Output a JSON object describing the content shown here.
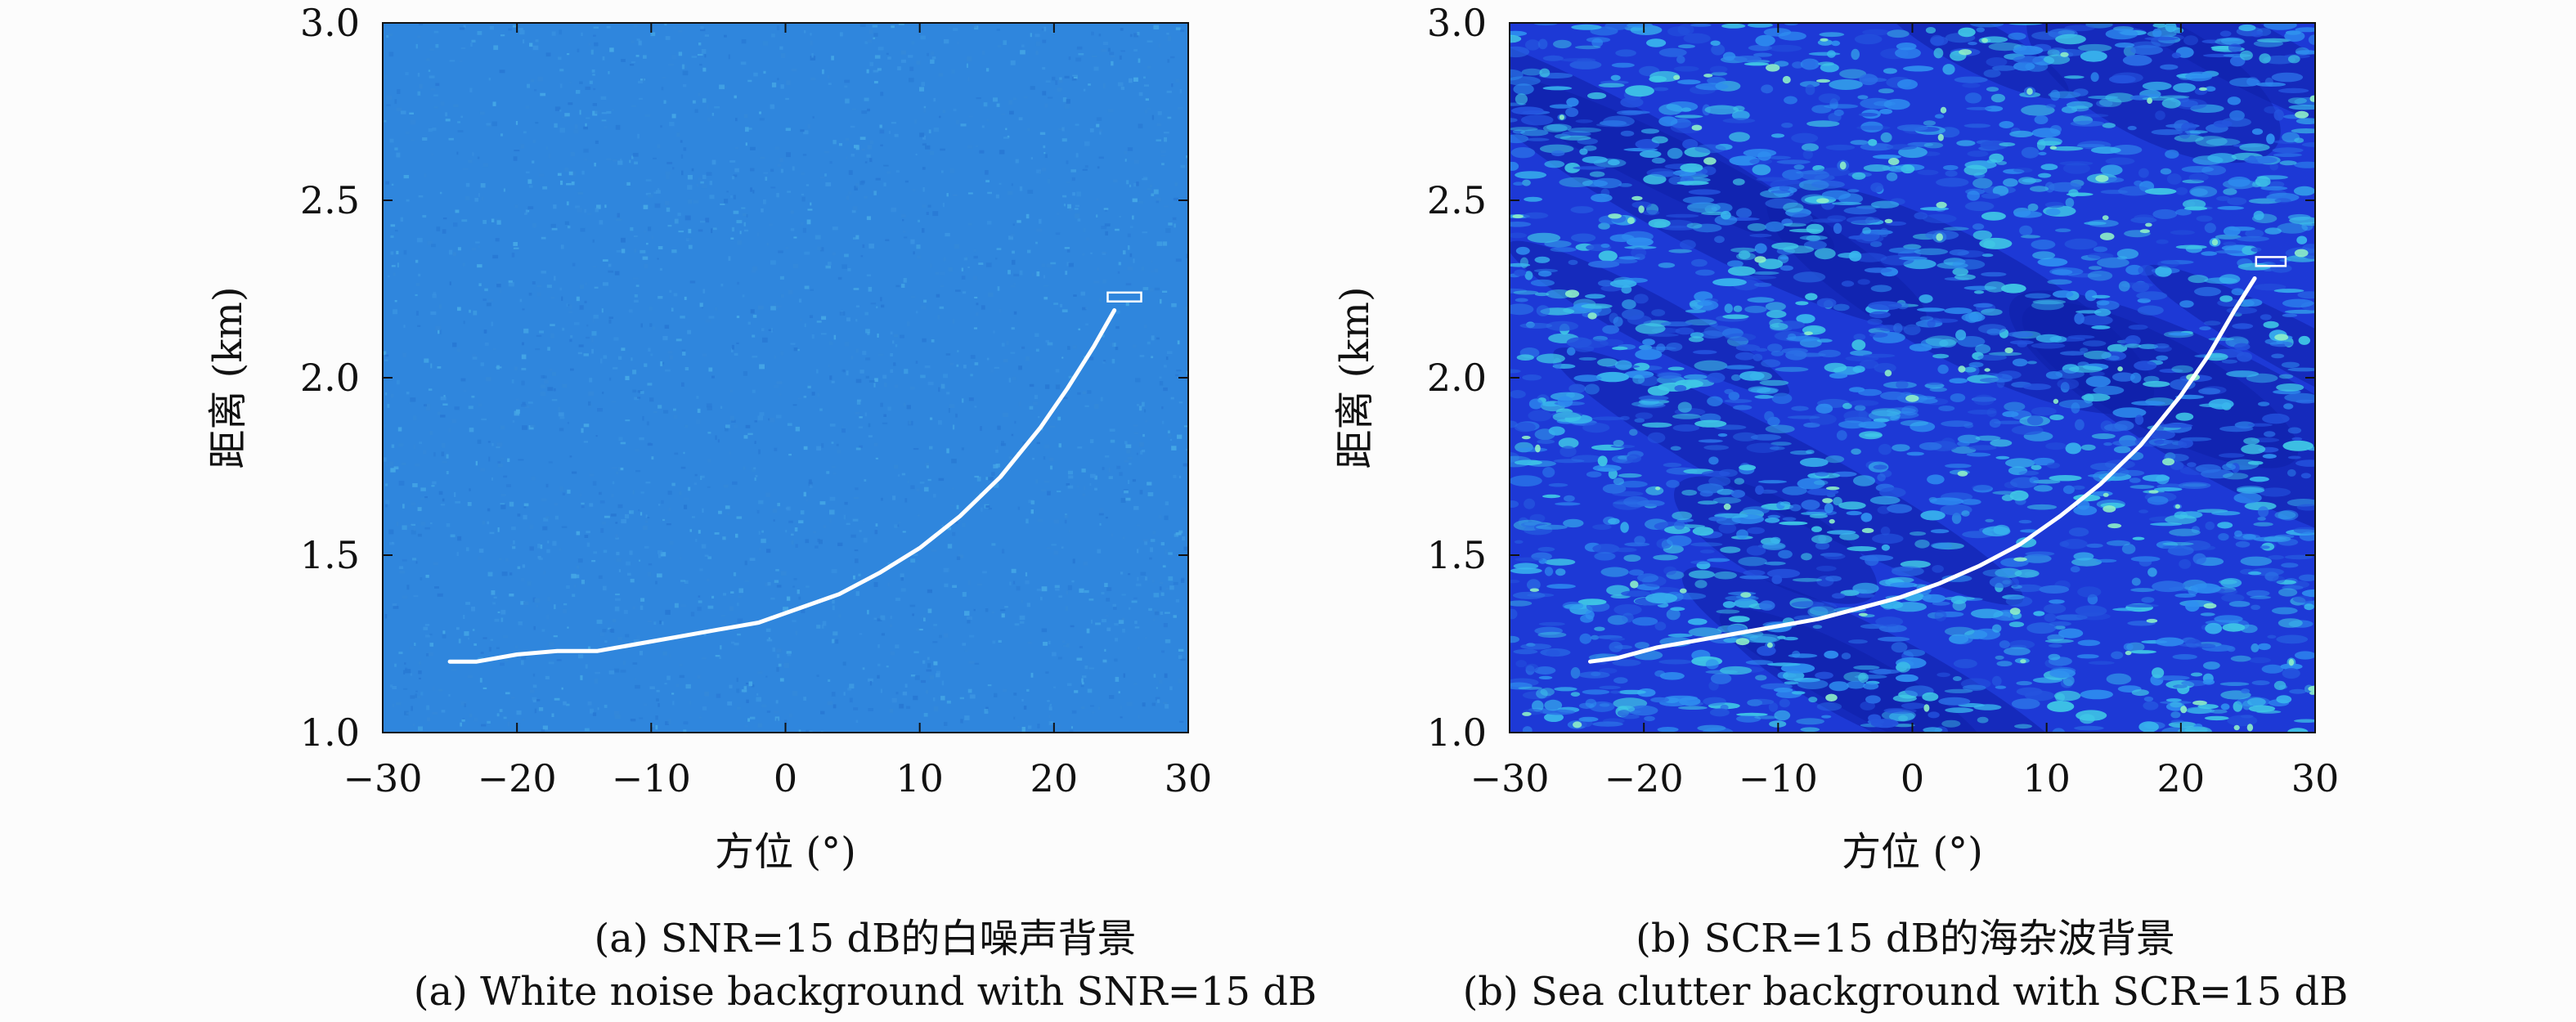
{
  "chart_data": [
    {
      "type": "heatmap",
      "panel": "a",
      "background": "white-noise",
      "xlabel": "方位 (°)",
      "ylabel": "距离 (km)",
      "xlim": [
        -30,
        30
      ],
      "ylim": [
        1.0,
        3.0
      ],
      "xticks": [
        -30,
        -20,
        -10,
        0,
        10,
        20,
        30
      ],
      "yticks": [
        1.0,
        1.5,
        2.0,
        2.5,
        3.0
      ],
      "xtick_labels": [
        "−30",
        "−20",
        "−10",
        "0",
        "10",
        "20",
        "30"
      ],
      "ytick_labels": [
        "1.0",
        "1.5",
        "2.0",
        "2.5",
        "3.0"
      ],
      "track": {
        "color": "#ffffff",
        "x": [
          -25,
          -23,
          -20,
          -17,
          -14,
          -11,
          -8,
          -5,
          -2,
          1,
          4,
          7,
          10,
          13,
          16,
          19,
          21,
          23,
          24.5
        ],
        "y": [
          1.2,
          1.2,
          1.22,
          1.23,
          1.23,
          1.25,
          1.27,
          1.29,
          1.31,
          1.35,
          1.39,
          1.45,
          1.52,
          1.61,
          1.72,
          1.86,
          1.97,
          2.09,
          2.19
        ]
      },
      "marker_box": {
        "x": [
          24,
          26.5
        ],
        "y": [
          2.215,
          2.24
        ]
      },
      "colors": {
        "base": "#2f86dd",
        "speckle": "#46b0e8"
      },
      "caption_cn": "(a) SNR=15 dB的白噪声背景",
      "caption_en": "(a) White noise background with SNR=15 dB"
    },
    {
      "type": "heatmap",
      "panel": "b",
      "background": "sea-clutter",
      "xlabel": "方位 (°)",
      "ylabel": "距离 (km)",
      "xlim": [
        -30,
        30
      ],
      "ylim": [
        1.0,
        3.0
      ],
      "xticks": [
        -30,
        -20,
        -10,
        0,
        10,
        20,
        30
      ],
      "yticks": [
        1.0,
        1.5,
        2.0,
        2.5,
        3.0
      ],
      "xtick_labels": [
        "−30",
        "−20",
        "−10",
        "0",
        "10",
        "20",
        "30"
      ],
      "ytick_labels": [
        "1.0",
        "1.5",
        "2.0",
        "2.5",
        "3.0"
      ],
      "track": {
        "color": "#ffffff",
        "x": [
          -24,
          -22,
          -19,
          -16,
          -13,
          -10,
          -7,
          -4,
          -1,
          2,
          5,
          8,
          11,
          14,
          17,
          20,
          22,
          24,
          25.5
        ],
        "y": [
          1.2,
          1.21,
          1.24,
          1.26,
          1.28,
          1.3,
          1.32,
          1.35,
          1.38,
          1.42,
          1.47,
          1.53,
          1.61,
          1.7,
          1.81,
          1.95,
          2.06,
          2.19,
          2.28
        ]
      },
      "marker_box": {
        "x": [
          25.6,
          27.8
        ],
        "y": [
          2.315,
          2.34
        ]
      },
      "colors": {
        "base": "#1d39d6",
        "dark": "#0f1fa8",
        "speckle": "#2fa8f0",
        "bright": "#8ef0c8"
      },
      "caption_cn": "(b) SCR=15 dB的海杂波背景",
      "caption_en": "(b) Sea clutter background with SCR=15 dB"
    }
  ]
}
